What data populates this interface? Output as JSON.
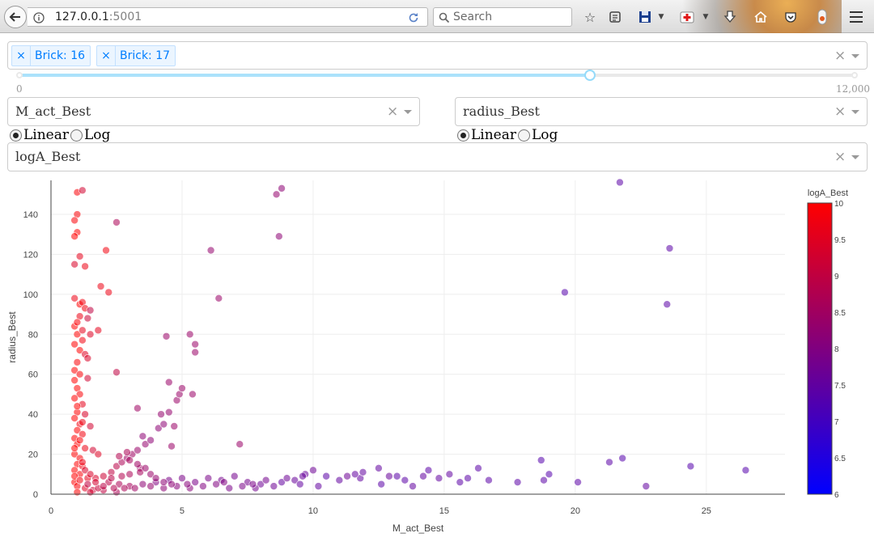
{
  "browser": {
    "url_host": "127.0.0.1",
    "url_port": ":5001",
    "search_placeholder": "Search"
  },
  "filter_dropdown": {
    "chips": [
      {
        "label": "Brick: 16"
      },
      {
        "label": "Brick: 17"
      }
    ],
    "remove_glyph": "×"
  },
  "slider": {
    "min_label": "0",
    "max_label": "12,000",
    "min": 0,
    "max": 12000,
    "value": 8200
  },
  "x_dropdown": {
    "value": "M_act_Best",
    "clear_glyph": "×"
  },
  "y_dropdown": {
    "value": "radius_Best",
    "clear_glyph": "×"
  },
  "x_scale": {
    "options": [
      "Linear",
      "Log"
    ],
    "selected": "Linear"
  },
  "y_scale": {
    "options": [
      "Linear",
      "Log"
    ],
    "selected": "Linear"
  },
  "color_dropdown": {
    "value": "logA_Best",
    "clear_glyph": "×"
  },
  "chart_data": {
    "type": "scatter",
    "xlabel": "M_act_Best",
    "ylabel": "radius_Best",
    "xlim": [
      0,
      28
    ],
    "ylim": [
      0,
      157
    ],
    "x_ticks": [
      0,
      5,
      10,
      15,
      20,
      25
    ],
    "y_ticks": [
      0,
      20,
      40,
      60,
      80,
      100,
      120,
      140
    ],
    "grid": true,
    "colorbar": {
      "title": "logA_Best",
      "range": [
        6,
        10
      ],
      "ticks": [
        6,
        6.5,
        7,
        7.5,
        8,
        8.5,
        9,
        9.5,
        10
      ],
      "colors": [
        "#0000ff",
        "#ff0000"
      ]
    },
    "points": [
      [
        1.0,
        151,
        9.9
      ],
      [
        1.2,
        152,
        9.3
      ],
      [
        1.0,
        140,
        9.9
      ],
      [
        0.9,
        137,
        9.9
      ],
      [
        1.0,
        131,
        10
      ],
      [
        0.9,
        129,
        10
      ],
      [
        1.1,
        119,
        9.6
      ],
      [
        1.3,
        114,
        9.7
      ],
      [
        0.9,
        115,
        9.4
      ],
      [
        2.5,
        136,
        8.7
      ],
      [
        2.1,
        122,
        9.8
      ],
      [
        2.2,
        101,
        9.7
      ],
      [
        1.9,
        104,
        9.7
      ],
      [
        0.9,
        98,
        9.7
      ],
      [
        1.1,
        95,
        10
      ],
      [
        1.2,
        96,
        9.8
      ],
      [
        1.3,
        93,
        9.8
      ],
      [
        1.5,
        92,
        9.0
      ],
      [
        1.4,
        88,
        9.2
      ],
      [
        1.1,
        89,
        9.7
      ],
      [
        0.9,
        84,
        10
      ],
      [
        1.0,
        80,
        10
      ],
      [
        1.2,
        82,
        9.6
      ],
      [
        1.5,
        80,
        9.5
      ],
      [
        1.8,
        82,
        9.6
      ],
      [
        0.9,
        75,
        10
      ],
      [
        1.1,
        72,
        10
      ],
      [
        1.3,
        70,
        9.5
      ],
      [
        1.0,
        66,
        9.9
      ],
      [
        0.9,
        62,
        10
      ],
      [
        1.1,
        60,
        9.9
      ],
      [
        1.4,
        58,
        9.3
      ],
      [
        2.5,
        61,
        9.0
      ],
      [
        0.9,
        57,
        10
      ],
      [
        1.0,
        53,
        10
      ],
      [
        1.1,
        50,
        9.9
      ],
      [
        0.9,
        48,
        10
      ],
      [
        1.2,
        45,
        9.6
      ],
      [
        1.0,
        41,
        10
      ],
      [
        1.3,
        40,
        9.4
      ],
      [
        0.9,
        38,
        10
      ],
      [
        1.1,
        35,
        9.8
      ],
      [
        1.5,
        34,
        9.3
      ],
      [
        1.0,
        32,
        10
      ],
      [
        1.2,
        30,
        9.8
      ],
      [
        0.9,
        28,
        10
      ],
      [
        1.0,
        25,
        10
      ],
      [
        1.3,
        23,
        9.7
      ],
      [
        1.6,
        22,
        9.3
      ],
      [
        0.9,
        20,
        10
      ],
      [
        1.1,
        18,
        9.9
      ],
      [
        1.8,
        20,
        9.5
      ],
      [
        1.0,
        15,
        10
      ],
      [
        1.2,
        14,
        9.8
      ],
      [
        0.9,
        12,
        10
      ],
      [
        1.1,
        10,
        9.9
      ],
      [
        1.4,
        8,
        9.6
      ],
      [
        0.9,
        6,
        10
      ],
      [
        1.0,
        4,
        9.9
      ],
      [
        1.3,
        3,
        9.5
      ],
      [
        1.6,
        2,
        9.2
      ],
      [
        2.0,
        2,
        9.0
      ],
      [
        1.0,
        1,
        10
      ],
      [
        1.5,
        1,
        9.3
      ],
      [
        2.5,
        1,
        8.7
      ],
      [
        1.7,
        8,
        9.4
      ],
      [
        2.0,
        9,
        9.2
      ],
      [
        2.3,
        11,
        9.0
      ],
      [
        2.5,
        14,
        8.9
      ],
      [
        2.7,
        16,
        8.7
      ],
      [
        2.9,
        18,
        8.5
      ],
      [
        3.1,
        20,
        8.5
      ],
      [
        3.3,
        22,
        8.4
      ],
      [
        3.6,
        25,
        8.3
      ],
      [
        3.8,
        27,
        8.2
      ],
      [
        4.1,
        33,
        8.2
      ],
      [
        4.3,
        35,
        8.2
      ],
      [
        3.5,
        29,
        8.2
      ],
      [
        2.2,
        6,
        8.9
      ],
      [
        2.6,
        5,
        8.7
      ],
      [
        3.0,
        4,
        8.6
      ],
      [
        3.4,
        13,
        8.5
      ],
      [
        4.2,
        40,
        8.3
      ],
      [
        4.5,
        41,
        8.3
      ],
      [
        4.6,
        24,
        8.4
      ],
      [
        4.8,
        47,
        8.4
      ],
      [
        4.9,
        50,
        8.4
      ],
      [
        5.0,
        53,
        8.4
      ],
      [
        5.4,
        50,
        8.4
      ],
      [
        4.5,
        56,
        8.4
      ],
      [
        4.7,
        34,
        8.4
      ],
      [
        4.4,
        79,
        8.4
      ],
      [
        5.3,
        80,
        8.4
      ],
      [
        5.5,
        75,
        8.4
      ],
      [
        5.5,
        71,
        8.4
      ],
      [
        6.1,
        122,
        8.3
      ],
      [
        6.4,
        98,
        8.4
      ],
      [
        7.2,
        25,
        8.4
      ],
      [
        3.3,
        43,
        8.5
      ],
      [
        8.6,
        150,
        8.3
      ],
      [
        8.8,
        153,
        8.2
      ],
      [
        8.7,
        129,
        8.2
      ],
      [
        3.5,
        5,
        8.2
      ],
      [
        4.0,
        6,
        8.0
      ],
      [
        4.5,
        7,
        7.9
      ],
      [
        5.0,
        8,
        7.9
      ],
      [
        5.5,
        6,
        7.9
      ],
      [
        6.0,
        8,
        7.9
      ],
      [
        6.5,
        7,
        7.8
      ],
      [
        7.0,
        9,
        7.8
      ],
      [
        7.5,
        6,
        7.8
      ],
      [
        8.0,
        5,
        7.7
      ],
      [
        8.5,
        4,
        7.7
      ],
      [
        8.8,
        6,
        7.5
      ],
      [
        9.3,
        7,
        7.6
      ],
      [
        9.7,
        10,
        7.6
      ],
      [
        10.0,
        12,
        7.7
      ],
      [
        9.5,
        5,
        7.5
      ],
      [
        10.5,
        9,
        7.4
      ],
      [
        11.3,
        9,
        7.7
      ],
      [
        11.8,
        8,
        7.5
      ],
      [
        12.5,
        13,
        7.5
      ],
      [
        12.9,
        9,
        7.6
      ],
      [
        13.5,
        7,
        7.4
      ],
      [
        14.2,
        9,
        7.5
      ],
      [
        14.4,
        12,
        7.4
      ],
      [
        15.2,
        10,
        7.5
      ],
      [
        15.9,
        8,
        7.4
      ],
      [
        16.3,
        13,
        7.4
      ],
      [
        16.7,
        7,
        7.4
      ],
      [
        18.7,
        17,
        7.3
      ],
      [
        18.8,
        7,
        7.4
      ],
      [
        19.0,
        10,
        7.3
      ],
      [
        19.6,
        101,
        7.3
      ],
      [
        21.3,
        16,
        7.4
      ],
      [
        21.8,
        18,
        7.3
      ],
      [
        21.7,
        156,
        7.4
      ],
      [
        23.5,
        95,
        7.4
      ],
      [
        23.6,
        123,
        7.4
      ],
      [
        24.4,
        14,
        7.3
      ],
      [
        26.5,
        12,
        7.3
      ],
      [
        11.9,
        11,
        7.5
      ],
      [
        14.8,
        8,
        7.5
      ],
      [
        17.8,
        6,
        7.4
      ],
      [
        10.2,
        4,
        7.5
      ],
      [
        13.8,
        4,
        7.5
      ],
      [
        12.6,
        5,
        7.4
      ],
      [
        15.6,
        6,
        7.4
      ],
      [
        20.1,
        6,
        7.4
      ],
      [
        22.7,
        4,
        7.5
      ],
      [
        1.4,
        5,
        9.0
      ],
      [
        1.8,
        3,
        9.1
      ],
      [
        2.0,
        4,
        8.9
      ],
      [
        2.4,
        3,
        8.8
      ],
      [
        2.8,
        3,
        8.7
      ],
      [
        3.2,
        3,
        8.5
      ],
      [
        3.8,
        4,
        8.3
      ],
      [
        4.3,
        3,
        8.2
      ],
      [
        4.8,
        4,
        8.1
      ],
      [
        5.3,
        3,
        8.1
      ],
      [
        5.8,
        4,
        8.0
      ],
      [
        6.3,
        5,
        8.0
      ],
      [
        6.8,
        3,
        7.9
      ],
      [
        7.3,
        4,
        7.9
      ],
      [
        7.8,
        3,
        7.8
      ],
      [
        2.3,
        8,
        8.9
      ],
      [
        2.7,
        9,
        8.8
      ],
      [
        3.0,
        10,
        8.7
      ],
      [
        3.4,
        11,
        8.6
      ],
      [
        2.6,
        19,
        8.8
      ],
      [
        2.9,
        21,
        8.7
      ],
      [
        3.0,
        17,
        8.6
      ],
      [
        3.3,
        15,
        8.5
      ],
      [
        3.6,
        13,
        8.4
      ],
      [
        3.8,
        10,
        8.4
      ],
      [
        4.0,
        8,
        8.3
      ],
      [
        4.3,
        6,
        8.2
      ],
      [
        4.6,
        5,
        8.2
      ],
      [
        5.2,
        5,
        8.1
      ],
      [
        6.6,
        6,
        8.0
      ],
      [
        7.7,
        5,
        7.9
      ],
      [
        8.2,
        7,
        7.8
      ],
      [
        9.0,
        8,
        7.7
      ],
      [
        9.6,
        9,
        7.6
      ],
      [
        11.0,
        7,
        7.5
      ],
      [
        11.6,
        10,
        7.5
      ],
      [
        13.2,
        9,
        7.4
      ],
      [
        1.0,
        86,
        9.9
      ],
      [
        1.2,
        77,
        9.8
      ],
      [
        1.4,
        68,
        9.4
      ],
      [
        1.0,
        44,
        10
      ],
      [
        1.2,
        36,
        9.7
      ],
      [
        1.1,
        27,
        9.9
      ],
      [
        0.9,
        23,
        10
      ],
      [
        1.2,
        16,
        9.7
      ],
      [
        0.9,
        9,
        10
      ],
      [
        1.1,
        7,
        9.8
      ],
      [
        1.3,
        12,
        9.4
      ],
      [
        1.5,
        10,
        9.4
      ],
      [
        1.7,
        6,
        9.3
      ]
    ]
  }
}
